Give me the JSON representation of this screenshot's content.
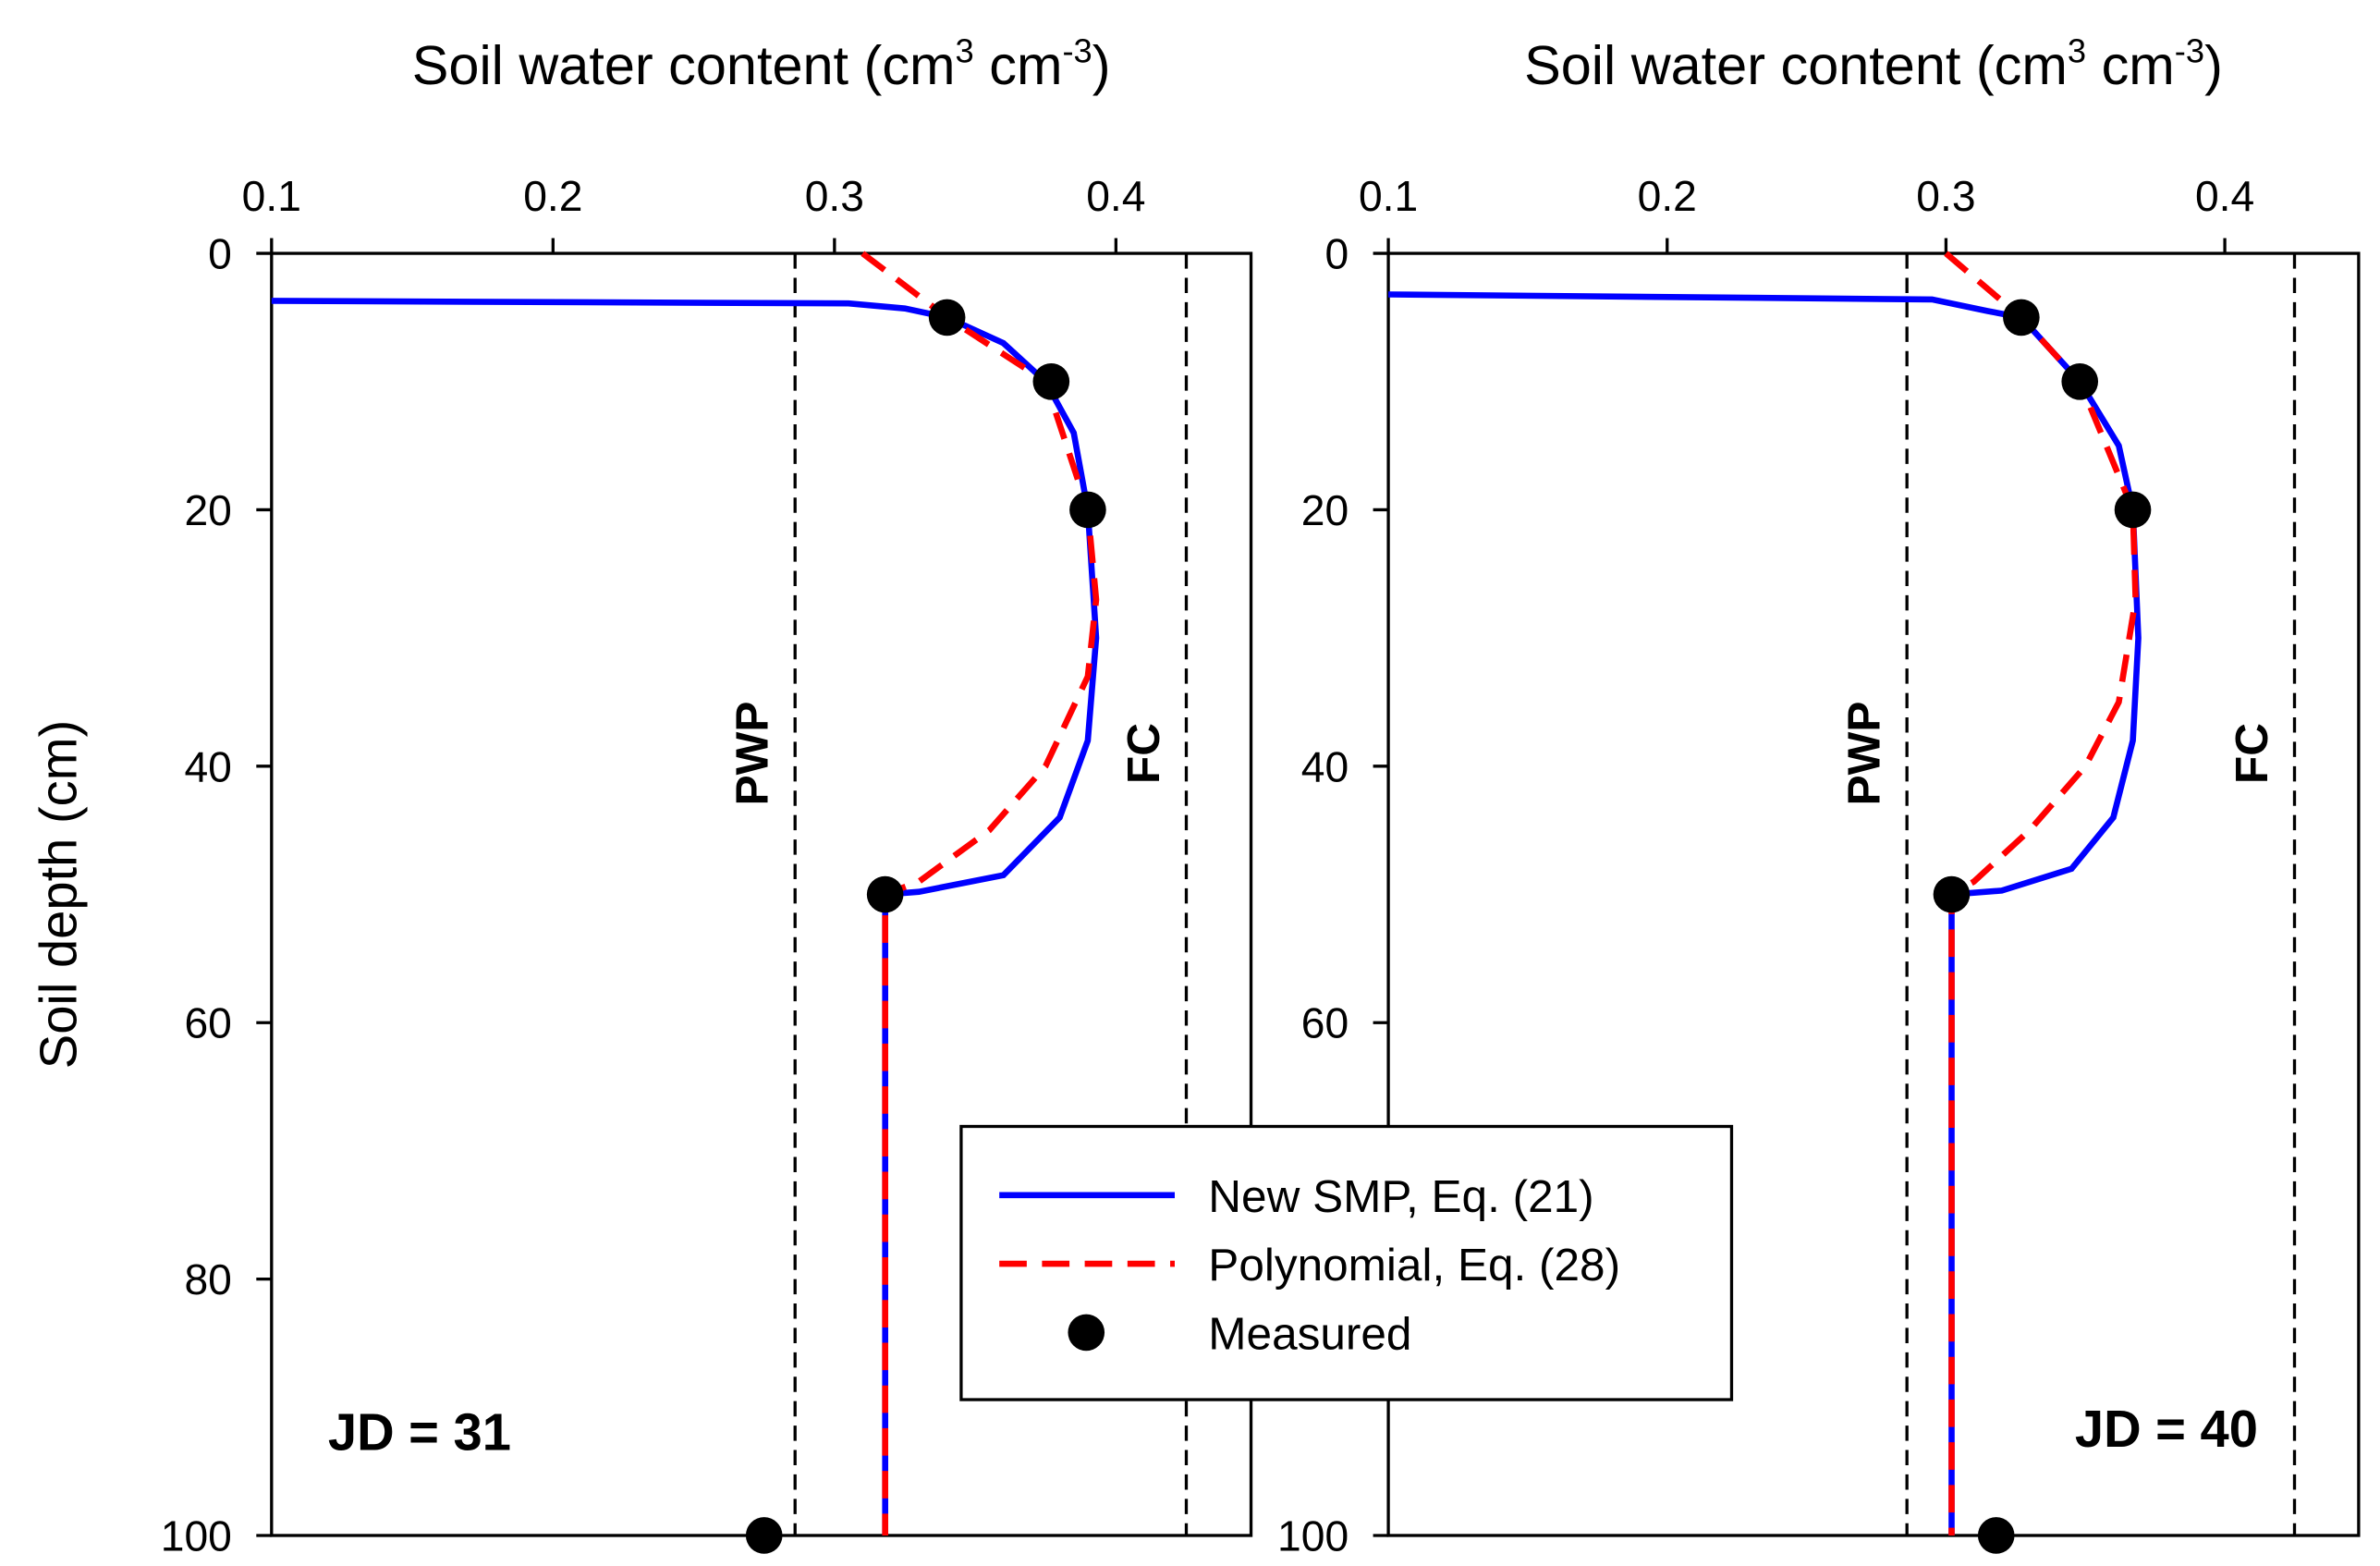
{
  "chart_data": [
    {
      "type": "line",
      "xlabel": [
        "Soil water content (cm",
        "3",
        " cm",
        "-3",
        ")"
      ],
      "ylabel": "Soil depth (cm)",
      "xlim": [
        0.1,
        0.448
      ],
      "ylim": [
        0,
        100
      ],
      "xticks": [
        0.1,
        0.2,
        0.3,
        0.4
      ],
      "yticks": [
        0,
        20,
        40,
        60,
        80,
        100
      ],
      "y_inverted": true,
      "annotation": "JD = 31",
      "vlines": [
        {
          "value": 0.286,
          "label": "PWP"
        },
        {
          "value": 0.425,
          "label": "FC"
        }
      ],
      "series": [
        {
          "name": "New SMP, Eq. (21)",
          "color": "#0000ff",
          "kind": "line",
          "linestyle": "solid",
          "x": [
            0.1,
            0.305,
            0.325,
            0.34,
            0.36,
            0.375,
            0.385,
            0.39,
            0.393,
            0.39,
            0.38,
            0.36,
            0.33,
            0.318,
            0.318
          ],
          "values": [
            3.7,
            3.9,
            4.3,
            5,
            7,
            10,
            14,
            20,
            30,
            38,
            44,
            48.5,
            49.8,
            50,
            100
          ]
        },
        {
          "name": "Polynomial, Eq. (28)",
          "color": "#ff0000",
          "kind": "line",
          "linestyle": "dashed",
          "x": [
            0.31,
            0.34,
            0.375,
            0.39,
            0.393,
            0.39,
            0.375,
            0.355,
            0.33,
            0.318,
            0.318
          ],
          "values": [
            0,
            5,
            10,
            20,
            27,
            33,
            40,
            45,
            49,
            50,
            100
          ]
        },
        {
          "name": "Measured",
          "color": "#000000",
          "kind": "scatter",
          "x": [
            0.34,
            0.377,
            0.39,
            0.318,
            0.275
          ],
          "values": [
            5,
            10,
            20,
            50,
            100
          ]
        }
      ]
    },
    {
      "type": "line",
      "xlabel": [
        "Soil water content (cm",
        "3",
        " cm",
        "-3",
        ")"
      ],
      "xlim": [
        0.1,
        0.448
      ],
      "ylim": [
        0,
        100
      ],
      "xticks": [
        0.1,
        0.2,
        0.3,
        0.4
      ],
      "yticks": [
        0,
        20,
        40,
        60,
        80,
        100
      ],
      "y_inverted": true,
      "annotation": "JD = 40",
      "vlines": [
        {
          "value": 0.286,
          "label": "PWP"
        },
        {
          "value": 0.425,
          "label": "FC"
        }
      ],
      "series": [
        {
          "color": "#0000ff",
          "kind": "line",
          "linestyle": "solid",
          "x": [
            0.1,
            0.295,
            0.315,
            0.327,
            0.348,
            0.362,
            0.367,
            0.369,
            0.367,
            0.36,
            0.345,
            0.32,
            0.302,
            0.302
          ],
          "values": [
            3.2,
            3.6,
            4.5,
            5,
            10,
            15,
            20,
            30,
            38,
            44,
            48,
            49.7,
            50,
            100
          ]
        },
        {
          "color": "#ff0000",
          "kind": "line",
          "linestyle": "dashed",
          "x": [
            0.3,
            0.327,
            0.348,
            0.367,
            0.368,
            0.362,
            0.35,
            0.33,
            0.31,
            0.302,
            0.302
          ],
          "values": [
            0,
            5,
            10,
            20,
            27,
            35,
            40,
            45,
            49,
            50,
            100
          ]
        },
        {
          "color": "#000000",
          "kind": "scatter",
          "x": [
            0.327,
            0.348,
            0.367,
            0.302,
            0.318
          ],
          "values": [
            5,
            10,
            20,
            50,
            100
          ]
        }
      ]
    }
  ]
}
